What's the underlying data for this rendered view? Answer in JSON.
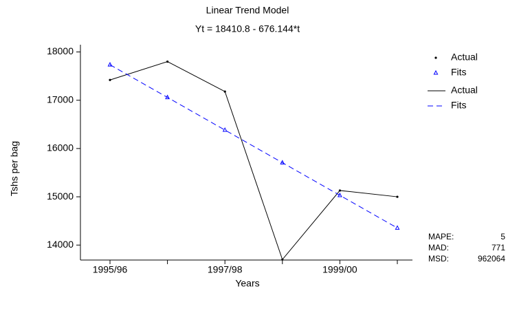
{
  "chart_data": {
    "type": "line",
    "title": "Linear Trend Model",
    "subtitle": "Yt = 18410.8 - 676.144*t",
    "x_label": "Years",
    "y_label": "Tshs per bag",
    "categories": [
      "1995/96",
      null,
      "1997/98",
      null,
      "1999/00",
      null
    ],
    "series": [
      {
        "name": "Actual",
        "color": "#000000",
        "style": "solid",
        "marker": "dot",
        "values": [
          17420,
          17800,
          17180,
          13700,
          15130,
          15000
        ]
      },
      {
        "name": "Fits",
        "color": "#0000ff",
        "style": "dashed",
        "marker": "triangle",
        "values": [
          17734.7,
          17058.5,
          16382.4,
          15706.2,
          15030.1,
          14353.9
        ]
      }
    ],
    "ylim": [
      13690,
      18150
    ],
    "yticks": [
      14000,
      15000,
      16000,
      17000,
      18000
    ],
    "legend": "top-right",
    "stats": [
      {
        "label": "MAPE:",
        "value": 5
      },
      {
        "label": "MAD:",
        "value": 771
      },
      {
        "label": "MSD:",
        "value": 962064
      }
    ]
  }
}
